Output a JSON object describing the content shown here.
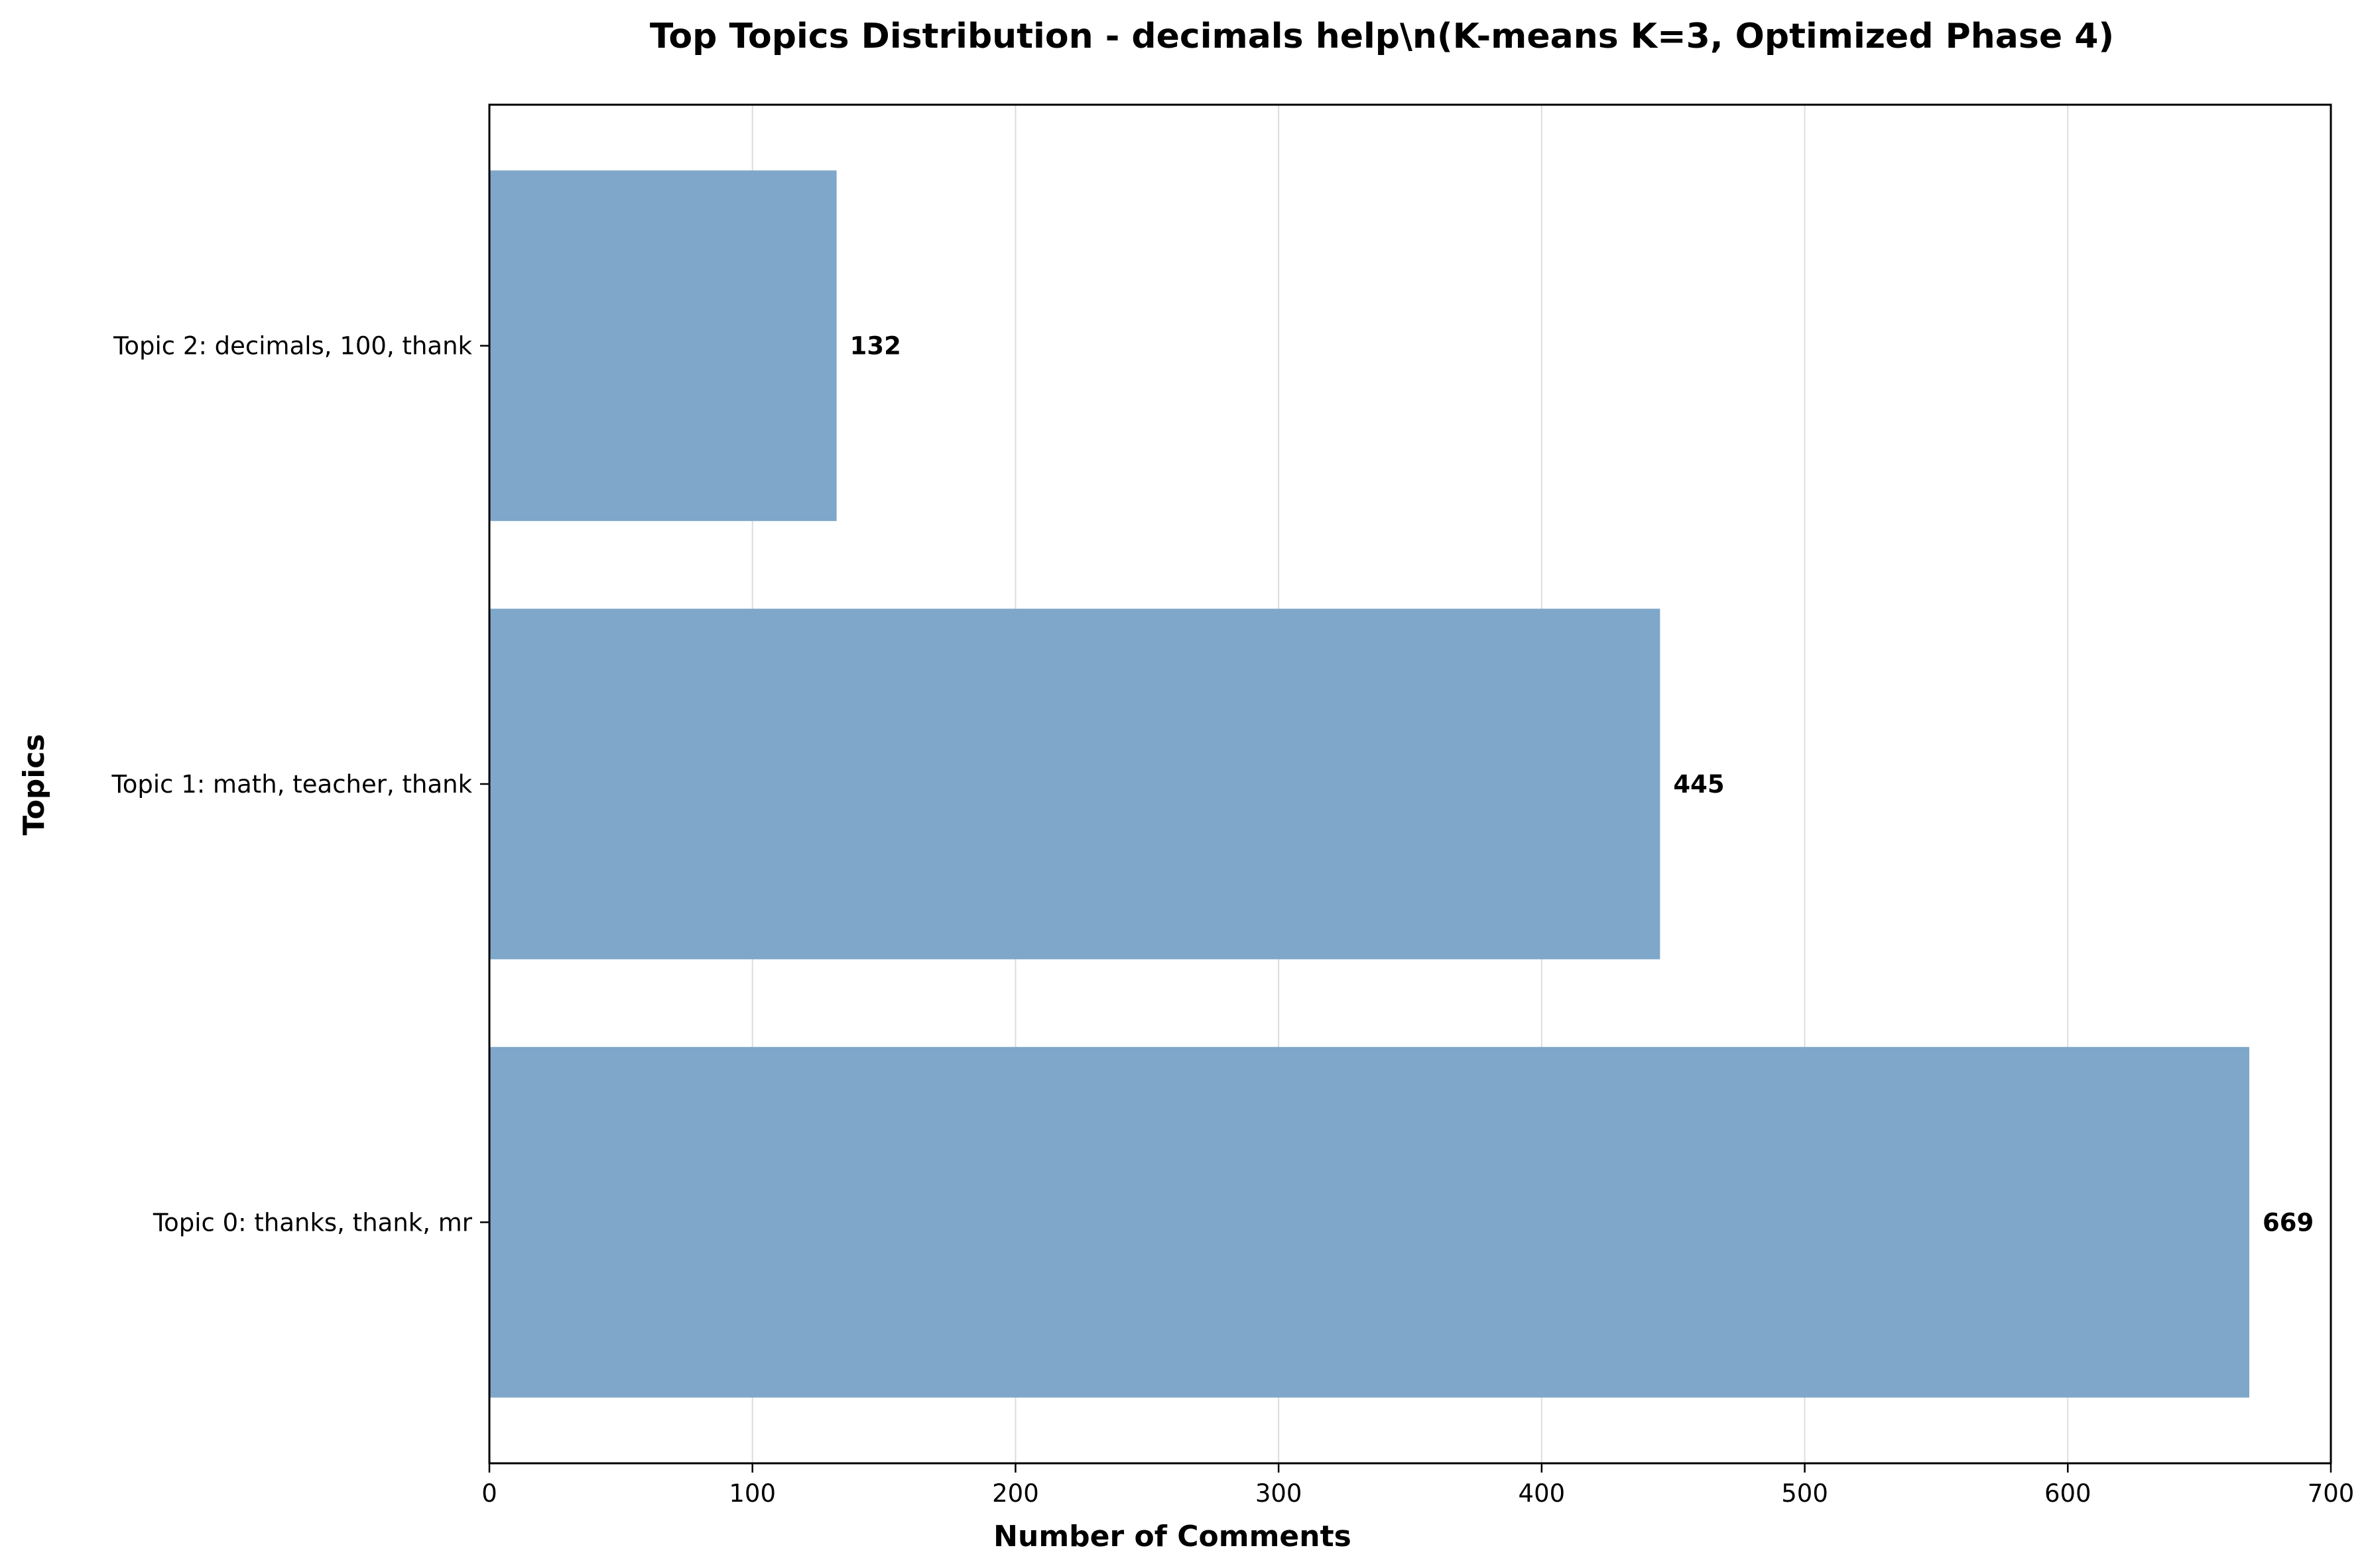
{
  "chart_data": {
    "type": "bar",
    "orientation": "horizontal",
    "title": "Top Topics Distribution - decimals help\\n(K-means K=3, Optimized Phase 4)",
    "xlabel": "Number of Comments",
    "ylabel": "Topics",
    "categories": [
      "Topic 0: thanks, thank, mr",
      "Topic 1: math, teacher, thank",
      "Topic 2: decimals, 100, thank"
    ],
    "values": [
      669,
      445,
      132
    ],
    "xlim": [
      0,
      700
    ],
    "xticks": [
      0,
      100,
      200,
      300,
      400,
      500,
      600,
      700
    ],
    "grid": "x",
    "bar_color": "#7ea7ca",
    "legend": "none"
  }
}
